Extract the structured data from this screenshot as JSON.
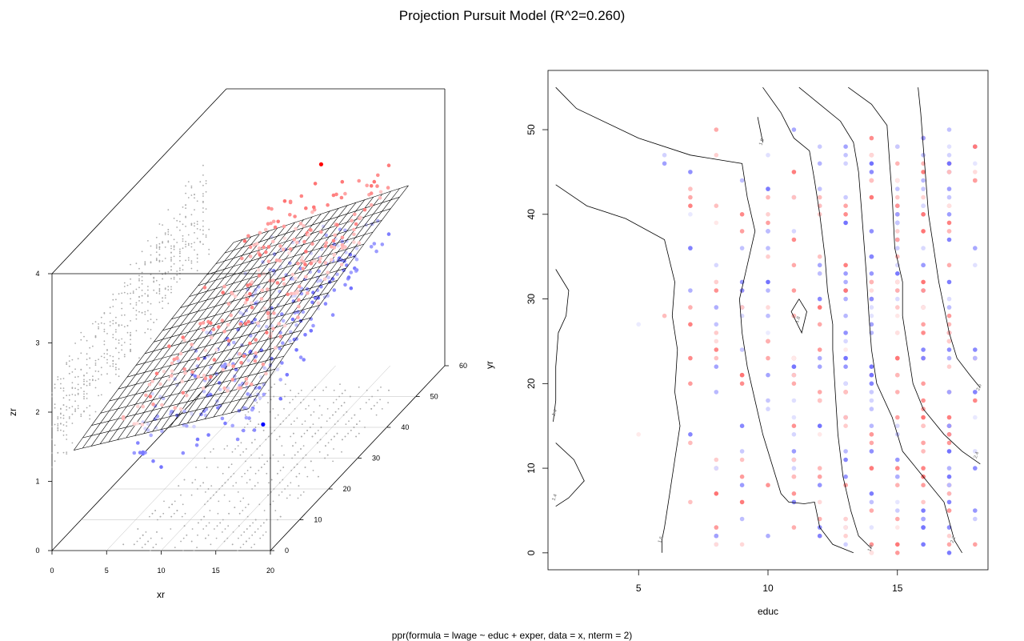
{
  "page": {
    "title": "Projection Pursuit Model (R^2=0.260)",
    "footer": "ppr(formula = lwage ~ educ + exper, data = x, nterm = 2)"
  },
  "chart_data": [
    {
      "type": "surface3d",
      "title": "",
      "xlabel": "xr",
      "ylabel": "yr",
      "zlabel": "zr",
      "x_ticks": [
        "0",
        "5",
        "10",
        "15",
        "20"
      ],
      "y_ticks": [
        "0",
        "10",
        "20",
        "30",
        "40",
        "50",
        "60"
      ],
      "z_ticks": [
        "0",
        "1",
        "2",
        "3",
        "4"
      ],
      "xlim": [
        0,
        20
      ],
      "ylim": [
        0,
        60
      ],
      "zlim": [
        0,
        4
      ],
      "surface_z_range": [
        1.4,
        2.8
      ],
      "highlighted_points": [
        {
          "x": 14,
          "y": 40,
          "z": 3.8,
          "color": "#ff0000"
        },
        {
          "x": 18,
          "y": 5,
          "z": 1.6,
          "color": "#0000ff"
        }
      ],
      "colors": {
        "above": "#ff8080",
        "below": "#8080ff",
        "shadow": "#aaaaaa",
        "mesh": "#000000"
      }
    },
    {
      "type": "contour",
      "title": "",
      "xlabel": "educ",
      "ylabel": "",
      "x_ticks": [
        "5",
        "10",
        "15"
      ],
      "y_ticks": [
        "0",
        "10",
        "20",
        "30",
        "40",
        "50"
      ],
      "xlim": [
        1.5,
        18.5
      ],
      "ylim": [
        -2,
        57
      ],
      "contour_labels": [
        "1.4",
        "1.4",
        "1.6",
        "1.8",
        "1.8",
        "1.8",
        "2.2",
        "2.4",
        "2.6"
      ],
      "levels": [
        1.4,
        1.6,
        1.8,
        2.0,
        2.2,
        2.4,
        2.6
      ],
      "colors": {
        "positive_residual": "#ff0000",
        "negative_residual": "#0000ff",
        "contour": "#000000"
      }
    }
  ]
}
